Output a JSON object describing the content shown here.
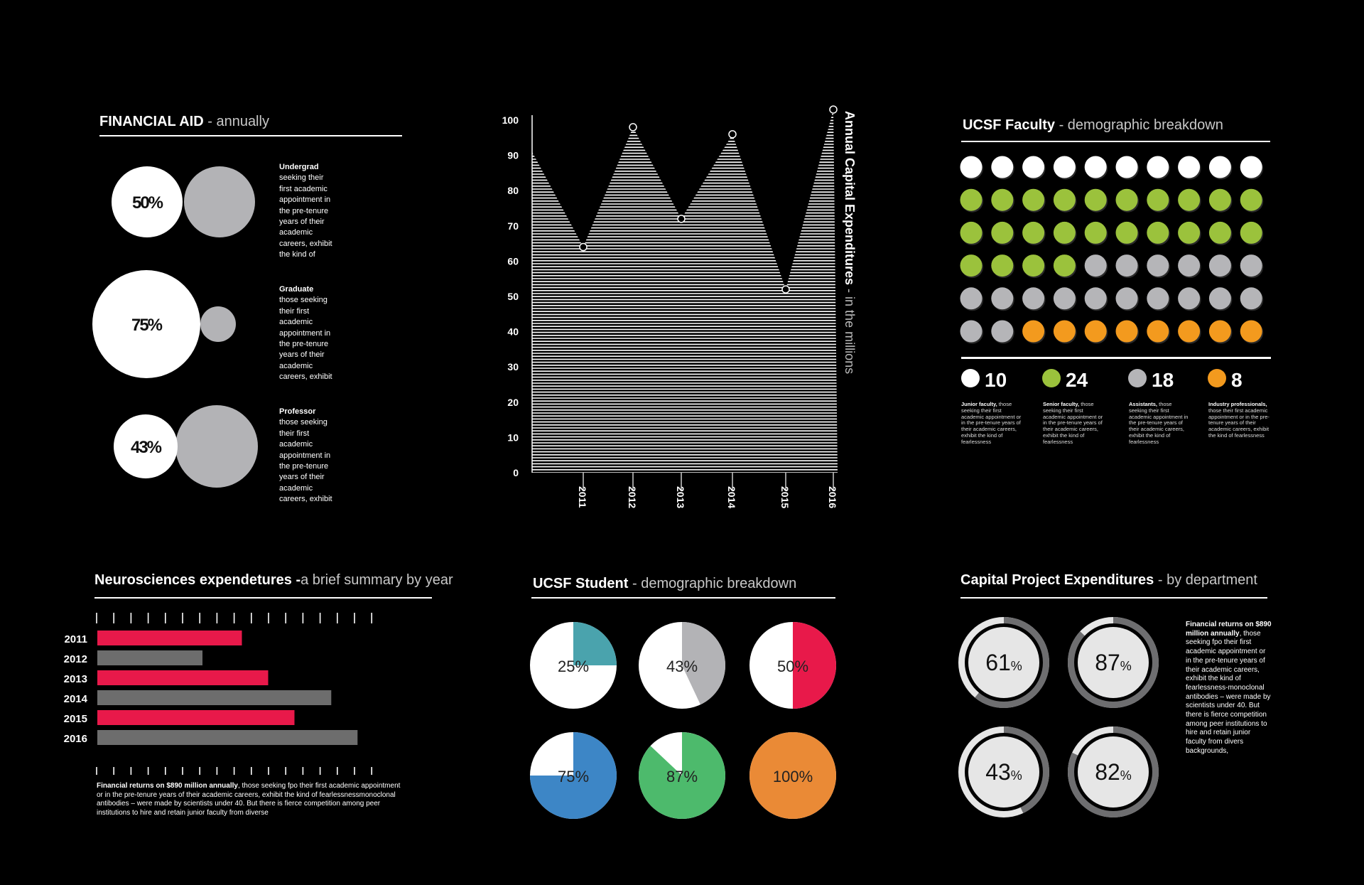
{
  "financial_aid": {
    "title": "FINANCIAL AID",
    "subtitle": " - annually",
    "items": [
      {
        "pct": "50%",
        "value": 50,
        "label": "Undergrad",
        "text": [
          "seeking their",
          "first academic",
          "appointment in",
          "the pre-tenure",
          "years of their",
          "academic",
          "careers, exhibit",
          "the kind of"
        ]
      },
      {
        "pct": "75%",
        "value": 75,
        "label": "Graduate",
        "text": [
          "those seeking",
          "their first",
          "academic",
          "appointment in",
          "the pre-tenure",
          "years of their",
          "academic",
          "careers, exhibit"
        ]
      },
      {
        "pct": "43%",
        "value": 43,
        "label": "Professor",
        "text": [
          "those seeking",
          "their first",
          "academic",
          "appointment in",
          "the pre-tenure",
          "years of their",
          "academic",
          "careers, exhibit"
        ]
      }
    ]
  },
  "capex": {
    "title": "Annual Capital Expenditures",
    "subtitle": " - in the millions"
  },
  "faculty": {
    "title": "UCSF Faculty",
    "subtitle": " - demographic breakdown",
    "colors": {
      "junior": "#ffffff",
      "senior": "#9bc23c",
      "assistants": "#b5b5b8",
      "industry": "#f39a1e"
    },
    "legend": [
      {
        "count": "10",
        "color": "#ffffff",
        "bold": "Junior faculty,",
        "text": " those seeking their first academic appointment or in the pre-tenure years of their academic careers, exhibit the kind of fearlessness"
      },
      {
        "count": "24",
        "color": "#9bc23c",
        "bold": "Senior faculty,",
        "text": " those seeking their first academic appointment or in the pre-tenure years of their academic careers, exhibit the kind of fearlessness"
      },
      {
        "count": "18",
        "color": "#b5b5b8",
        "bold": "Assistants,",
        "text": " those seeking their first academic appointment in the pre-tenure years of their academic careers, exhibit the kind of fearlessness"
      },
      {
        "count": "8",
        "color": "#f39a1e",
        "bold": "Industry professionals,",
        "text": " those their first academic appointment or in the pre-tenure years of their academic careers, exhibit the kind of fearlessness"
      }
    ]
  },
  "neuro": {
    "title": "Neurosciences expendetures -",
    "subtitle": "a brief summary by year",
    "note_bold": "Financial returns on $890 million annually",
    "note_text": ", those seeking fpo their first academic appointment or in the pre-tenure years of their academic careers, exhibit the kind of fearlessnessmonoclonal antibodies – were made by scientists under 40. But there is fierce competition among peer institutions to hire and retain junior faculty from diverse"
  },
  "student": {
    "title": "UCSF Student",
    "subtitle": " - demographic breakdown"
  },
  "project": {
    "title": "Capital Project Expenditures",
    "subtitle": " - by department",
    "note_bold": "Financial returns on $890 million annually",
    "note_text": ", those seeking fpo their first academic appointment or in the pre-tenure years of their academic careers, exhibit the kind of fearlessness-monoclonal antibodies – were made by scientists under 40. But there is fierce competition among peer institutions to hire and retain junior faculty from divers backgrounds,"
  },
  "chart_data": [
    {
      "type": "area",
      "title": "Annual Capital Expenditures - in the millions",
      "x": [
        "2011",
        "2012",
        "2013",
        "2014",
        "2015",
        "2016"
      ],
      "y": [
        64,
        98,
        72,
        96,
        52,
        103
      ],
      "start_value": 91,
      "yticks": [
        0,
        10,
        20,
        30,
        40,
        50,
        60,
        70,
        80,
        90,
        100
      ],
      "ylim": [
        0,
        100
      ]
    },
    {
      "type": "bar",
      "title": "Neurosciences expendetures -a brief summary by year",
      "categories": [
        "2011",
        "2012",
        "2013",
        "2014",
        "2015",
        "2016"
      ],
      "values": [
        55,
        40,
        65,
        89,
        75,
        99
      ],
      "colors": [
        "#e8194a",
        "#6d6d6d",
        "#e8194a",
        "#6d6d6d",
        "#e8194a",
        "#6d6d6d"
      ]
    },
    {
      "type": "pie",
      "title": "UCSF Student - demographic breakdown",
      "slices": [
        {
          "label": "25%",
          "value": 25,
          "color": "#4aa3ad"
        },
        {
          "label": "43%",
          "value": 43,
          "color": "#b3b3b6"
        },
        {
          "label": "50%",
          "value": 50,
          "color": "#e8194a"
        },
        {
          "label": "75%",
          "value": 75,
          "color": "#3d86c6"
        },
        {
          "label": "87%",
          "value": 87,
          "color": "#4dba6c"
        },
        {
          "label": "100%",
          "value": 100,
          "color": "#ea8a36"
        }
      ]
    },
    {
      "type": "pie",
      "title": "Capital Project Expenditures - by department",
      "values": [
        61,
        87,
        43,
        82
      ],
      "labels": [
        "61",
        "87",
        "43",
        "82"
      ],
      "unit": "%"
    }
  ]
}
